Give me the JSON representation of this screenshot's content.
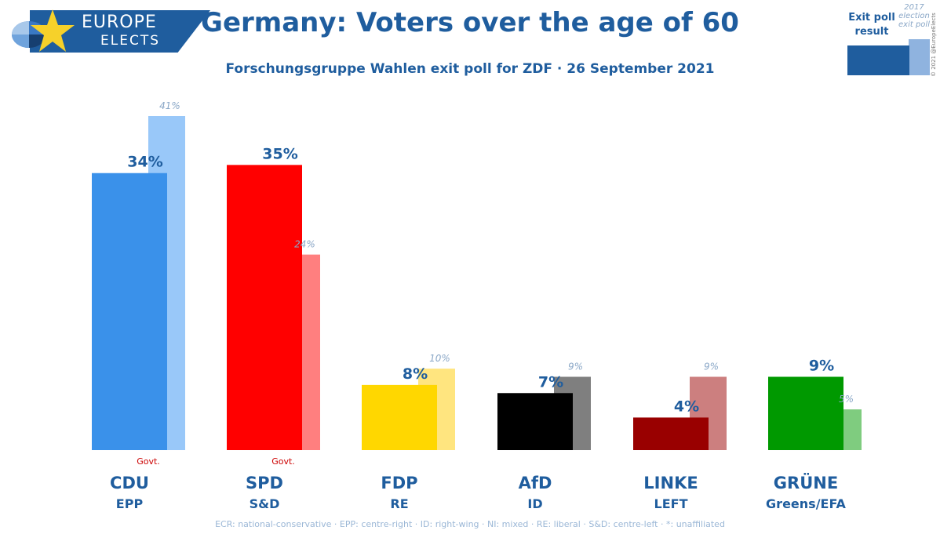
{
  "logo": {
    "line1": "EUROPE",
    "line2": "ELECTS",
    "colors": {
      "band": "#1f5d9e",
      "star": "#f6d12a"
    }
  },
  "header": {
    "title": "Germany: Voters over the age of 60",
    "subtitle": "Forschungsgruppe Wahlen exit poll for ZDF · 26 September 2021"
  },
  "legend": {
    "main_label": "Exit poll result",
    "prev_label": "2017 election exit poll",
    "colors": {
      "main": "#1f5d9e",
      "prev": "#8fb3df"
    }
  },
  "copyright": "© 2021 @EuropeElects",
  "footnote": "ECR: national-conservative · EPP: centre-right · ID: right-wing · NI: mixed · RE: liberal · S&D: centre-left · *: unaffiliated",
  "chart_data": {
    "type": "bar",
    "title": "Germany: Voters over the age of 60",
    "subtitle": "Forschungsgruppe Wahlen exit poll for ZDF · 26 September 2021",
    "categories": [
      "CDU",
      "SPD",
      "FDP",
      "AfD",
      "LINKE",
      "GRÜNE"
    ],
    "groups": [
      "EPP",
      "S&D",
      "RE",
      "ID",
      "LEFT",
      "Greens/EFA"
    ],
    "series": [
      {
        "name": "Exit poll result",
        "values": [
          34,
          35,
          8,
          7,
          4,
          9
        ],
        "labels": [
          "34%",
          "35%",
          "8%",
          "7%",
          "4%",
          "9%"
        ]
      },
      {
        "name": "2017 election exit poll",
        "values": [
          41,
          24,
          10,
          9,
          9,
          5
        ],
        "labels": [
          "41%",
          "24%",
          "10%",
          "9%",
          "9%",
          "5%"
        ]
      }
    ],
    "govt_label": "Govt.",
    "govt_parties": [
      "CDU",
      "SPD"
    ],
    "colors": [
      "#3a91ea",
      "#ff0000",
      "#ffd700",
      "#000000",
      "#990000",
      "#009900"
    ],
    "prev_colors": [
      "#99c8f9",
      "#ff7f7f",
      "#ffe57f",
      "#7f7f7f",
      "#cc7f7f",
      "#7fcc7f"
    ],
    "text_color": "#1f5d9e",
    "prev_text_color": "#8aa7c7",
    "govt_color": "#cc0000",
    "ylim": [
      0,
      41
    ],
    "grid": false
  }
}
